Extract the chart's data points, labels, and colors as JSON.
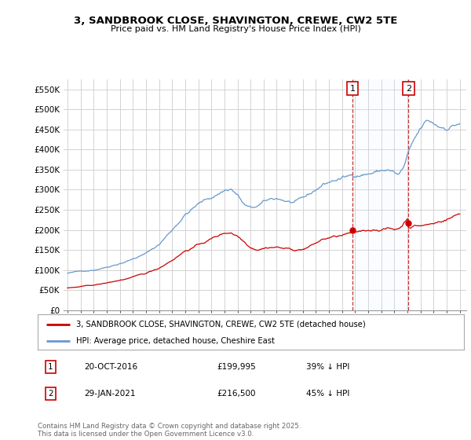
{
  "title_line1": "3, SANDBROOK CLOSE, SHAVINGTON, CREWE, CW2 5TE",
  "title_line2": "Price paid vs. HM Land Registry's House Price Index (HPI)",
  "legend_label1": "3, SANDBROOK CLOSE, SHAVINGTON, CREWE, CW2 5TE (detached house)",
  "legend_label2": "HPI: Average price, detached house, Cheshire East",
  "annotation1_date": "20-OCT-2016",
  "annotation1_price": "£199,995",
  "annotation1_hpi": "39% ↓ HPI",
  "annotation2_date": "29-JAN-2021",
  "annotation2_price": "£216,500",
  "annotation2_hpi": "45% ↓ HPI",
  "footer": "Contains HM Land Registry data © Crown copyright and database right 2025.\nThis data is licensed under the Open Government Licence v3.0.",
  "line1_color": "#cc0000",
  "line2_color": "#6699cc",
  "box_border_color": "#cc0000",
  "vline_color": "#cc3333",
  "span_color": "#ddeeff",
  "background_color": "#ffffff",
  "grid_color": "#cccccc",
  "ylim": [
    0,
    575000
  ],
  "yticks": [
    0,
    50000,
    100000,
    150000,
    200000,
    250000,
    300000,
    350000,
    400000,
    450000,
    500000,
    550000
  ],
  "sale1_year": 2016.789,
  "sale1_price": 199995,
  "sale2_year": 2021.075,
  "sale2_price": 216500,
  "xmin": 1994.7,
  "xmax": 2025.5
}
